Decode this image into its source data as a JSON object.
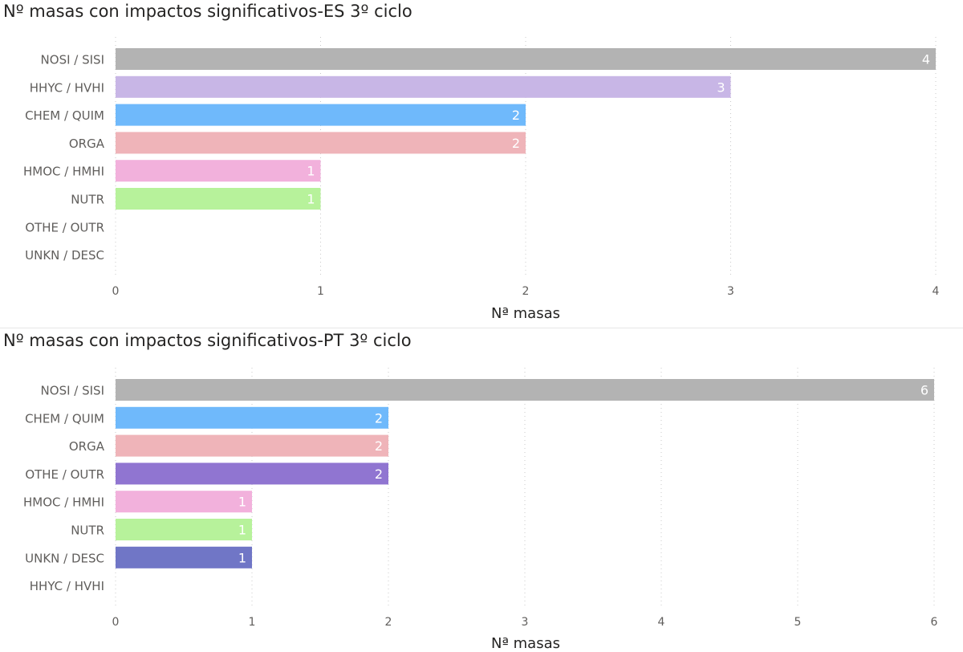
{
  "chart_data": [
    {
      "type": "bar",
      "orientation": "horizontal",
      "title": "Nº masas con impactos significativos-ES 3º ciclo",
      "xlabel": "Nª masas",
      "ylabel": "",
      "xlim": [
        0,
        4
      ],
      "xticks": [
        "0",
        "1",
        "2",
        "3",
        "4"
      ],
      "grid": "vertical dotted",
      "categories": [
        "NOSI / SISI",
        "HHYC / HVHI",
        "CHEM / QUIM",
        "ORGA",
        "HMOC / HMHI",
        "NUTR",
        "OTHE / OUTR",
        "UNKN / DESC"
      ],
      "values": [
        4,
        3,
        2,
        2,
        1,
        1,
        0,
        0
      ],
      "colors": [
        "#b3b3b3",
        "#c8b6e6",
        "#6fb9fb",
        "#efb4b9",
        "#f2b1dc",
        "#b7f29b",
        "#9075d1",
        "#7076c6"
      ],
      "data_labels": [
        "4",
        "3",
        "2",
        "2",
        "1",
        "1",
        "",
        ""
      ]
    },
    {
      "type": "bar",
      "orientation": "horizontal",
      "title": "Nº masas con impactos significativos-PT 3º ciclo",
      "xlabel": "Nª masas",
      "ylabel": "",
      "xlim": [
        0,
        6
      ],
      "xticks": [
        "0",
        "1",
        "2",
        "3",
        "4",
        "5",
        "6"
      ],
      "grid": "vertical dotted",
      "categories": [
        "NOSI / SISI",
        "CHEM / QUIM",
        "ORGA",
        "OTHE / OUTR",
        "HMOC / HMHI",
        "NUTR",
        "UNKN / DESC",
        "HHYC / HVHI"
      ],
      "values": [
        6,
        2,
        2,
        2,
        1,
        1,
        1,
        0
      ],
      "colors": [
        "#b3b3b3",
        "#6fb9fb",
        "#efb4b9",
        "#9075d1",
        "#f2b1dc",
        "#b7f29b",
        "#7076c6",
        "#c8b6e6"
      ],
      "data_labels": [
        "6",
        "2",
        "2",
        "2",
        "1",
        "1",
        "1",
        ""
      ]
    }
  ]
}
